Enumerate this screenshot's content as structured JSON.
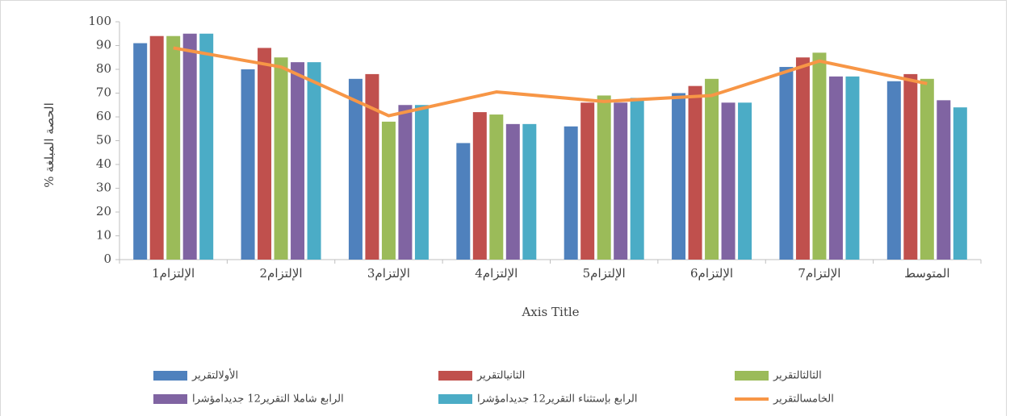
{
  "chart_data": {
    "type": "bar",
    "categories": [
      "الإلتزام1",
      "الإلتزام2",
      "الإلتزام3",
      "الإلتزام4",
      "الإلتزام5",
      "الإلتزام6",
      "الإلتزام7",
      "المتوسط"
    ],
    "series": [
      {
        "name": "الأولالتقرير",
        "color": "#4f81bd",
        "values": [
          91,
          80,
          76,
          49,
          56,
          70,
          81,
          75
        ]
      },
      {
        "name": "الثانيالتقرير",
        "color": "#c0504d",
        "values": [
          94,
          89,
          78,
          62,
          66,
          73,
          85,
          78
        ]
      },
      {
        "name": "الثالثالتقرير",
        "color": "#9bbb59",
        "values": [
          94,
          85,
          58,
          61,
          69,
          76,
          87,
          76
        ]
      },
      {
        "name": "الرابع شاملا التقرير12 جديدامؤشرا",
        "color": "#8064a2",
        "values": [
          95,
          83,
          65,
          57,
          66,
          66,
          77,
          67
        ]
      },
      {
        "name": "الرابع بإستثناء التقرير12 جديدامؤشرا",
        "color": "#4bacc6",
        "values": [
          95,
          83,
          65,
          57,
          68,
          66,
          77,
          64
        ]
      },
      {
        "name": "الخامسالتقرير",
        "color": "#f79646",
        "type": "line",
        "values": [
          89,
          81,
          60.5,
          70.5,
          66.5,
          69,
          83.5,
          74
        ]
      }
    ],
    "x_label": "Axis Title",
    "y_label": "% الحصة المبلغة",
    "ylim": [
      0,
      100
    ],
    "yticks": [
      0,
      10,
      20,
      30,
      40,
      50,
      60,
      70,
      80,
      90,
      100
    ],
    "legend": "bottom"
  }
}
